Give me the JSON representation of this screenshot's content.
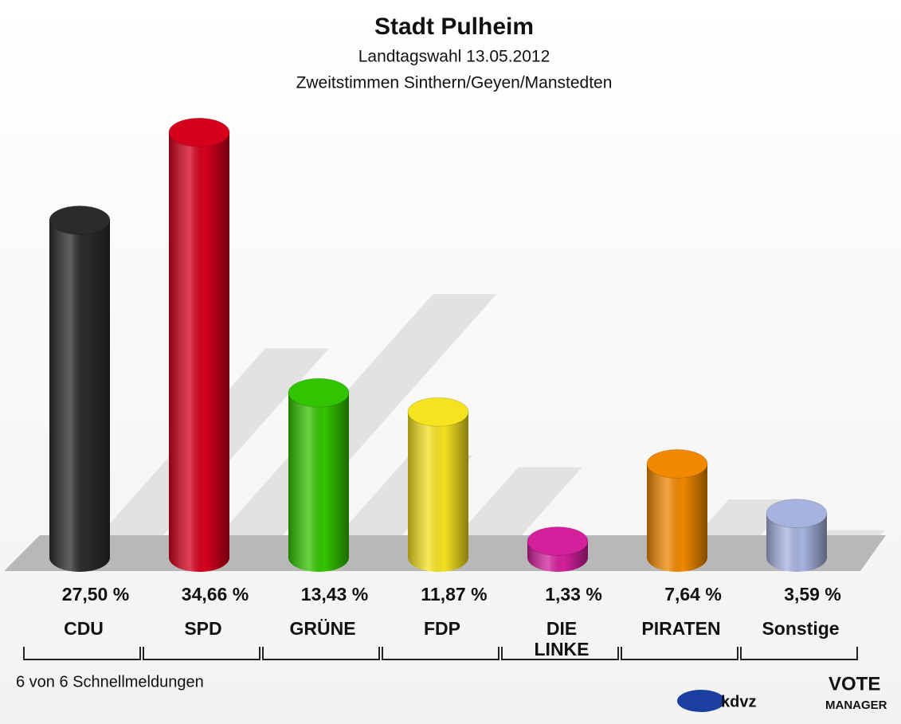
{
  "chart_data": {
    "type": "bar",
    "title": "Stadt Pulheim",
    "subtitles": [
      "Landtagswahl 13.05.2012",
      "Zweitstimmen Sinthern/Geyen/Manstedten"
    ],
    "categories": [
      "CDU",
      "SPD",
      "GRÜNE",
      "FDP",
      "DIE\nLINKE",
      "PIRATEN",
      "Sonstige"
    ],
    "values": [
      27.5,
      34.66,
      13.43,
      11.87,
      1.33,
      7.64,
      3.59
    ],
    "value_labels": [
      "27,50 %",
      "34,66 %",
      "13,43 %",
      "11,87 %",
      "1,33 %",
      "7,64 %",
      "3,59 %"
    ],
    "colors": [
      "#2b2b2b",
      "#d4001c",
      "#33c400",
      "#f5e320",
      "#d3209c",
      "#f08800",
      "#a7b3df"
    ]
  },
  "footer": {
    "note": "6 von 6 Schnellmeldungen",
    "logos": [
      "kdvz",
      "VOTE",
      "MANAGER"
    ]
  }
}
